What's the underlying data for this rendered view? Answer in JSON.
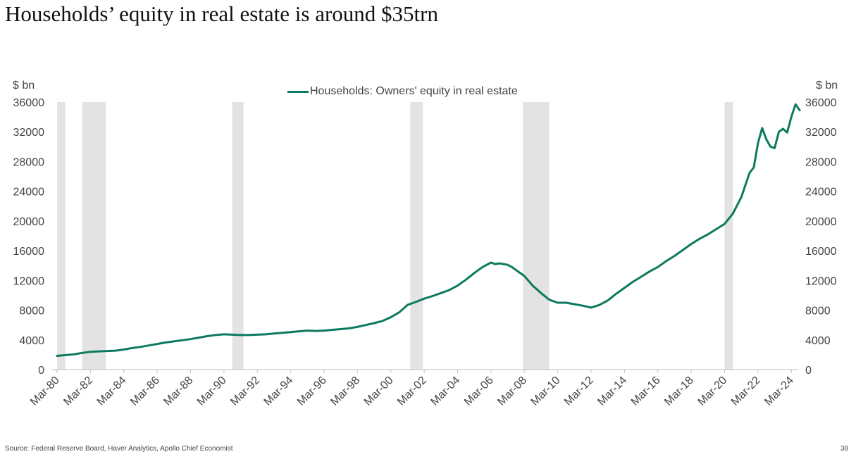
{
  "title": "Households’ equity in real estate is around $35trn",
  "footer": {
    "source": "Source: Federal Reserve Board, Haver Analytics, Apollo Chief Economist",
    "page_number": "38"
  },
  "colors": {
    "series_line": "#0c7a5e",
    "recession_band": "#e3e3e3",
    "axis": "#bfbfbf",
    "text": "#444444"
  },
  "chart_data": {
    "type": "line",
    "title": "Households’ equity in real estate is around $35trn",
    "y_unit_left": "$ bn",
    "y_unit_right": "$ bn",
    "ylim": [
      0,
      36000
    ],
    "yticks": [
      "0",
      "4000",
      "8000",
      "12000",
      "16000",
      "20000",
      "24000",
      "28000",
      "32000",
      "36000"
    ],
    "xlim": [
      1980.0,
      2024.75
    ],
    "xticks": [
      "Mar-80",
      "Mar-82",
      "Mar-84",
      "Mar-86",
      "Mar-88",
      "Mar-90",
      "Mar-92",
      "Mar-94",
      "Mar-96",
      "Mar-98",
      "Mar-00",
      "Mar-02",
      "Mar-04",
      "Mar-06",
      "Mar-08",
      "Mar-10",
      "Mar-12",
      "Mar-14",
      "Mar-16",
      "Mar-18",
      "Mar-20",
      "Mar-22",
      "Mar-24"
    ],
    "legend": {
      "position": "top-center",
      "entries": [
        "Households: Owners' equity in real estate"
      ]
    },
    "grid": false,
    "recession_shading": [
      {
        "start": 1980.0,
        "end": 1980.5
      },
      {
        "start": 1981.5,
        "end": 1982.92
      },
      {
        "start": 1990.5,
        "end": 1991.17
      },
      {
        "start": 2001.17,
        "end": 2001.92
      },
      {
        "start": 2007.92,
        "end": 2009.5
      },
      {
        "start": 2020.0,
        "end": 2020.5
      }
    ],
    "series": [
      {
        "name": "Households: Owners' equity in real estate",
        "x": [
          1980.0,
          1980.5,
          1981.0,
          1981.5,
          1982.0,
          1982.5,
          1983.0,
          1983.5,
          1984.0,
          1984.5,
          1985.0,
          1985.5,
          1986.0,
          1986.5,
          1987.0,
          1987.5,
          1988.0,
          1988.5,
          1989.0,
          1989.5,
          1990.0,
          1990.5,
          1991.0,
          1991.5,
          1992.0,
          1992.5,
          1993.0,
          1993.5,
          1994.0,
          1994.5,
          1995.0,
          1995.5,
          1996.0,
          1996.5,
          1997.0,
          1997.5,
          1998.0,
          1998.5,
          1999.0,
          1999.5,
          2000.0,
          2000.5,
          2001.0,
          2001.5,
          2002.0,
          2002.5,
          2003.0,
          2003.5,
          2004.0,
          2004.5,
          2005.0,
          2005.5,
          2006.0,
          2006.25,
          2006.5,
          2007.0,
          2007.25,
          2007.5,
          2008.0,
          2008.5,
          2009.0,
          2009.5,
          2010.0,
          2010.5,
          2011.0,
          2011.5,
          2012.0,
          2012.5,
          2013.0,
          2013.5,
          2014.0,
          2014.5,
          2015.0,
          2015.5,
          2016.0,
          2016.5,
          2017.0,
          2017.5,
          2018.0,
          2018.5,
          2019.0,
          2019.5,
          2020.0,
          2020.5,
          2021.0,
          2021.5,
          2021.75,
          2022.0,
          2022.25,
          2022.5,
          2022.75,
          2023.0,
          2023.25,
          2023.5,
          2023.75,
          2024.0,
          2024.25,
          2024.5
        ],
        "values": [
          1850,
          1950,
          2050,
          2250,
          2400,
          2450,
          2500,
          2550,
          2700,
          2900,
          3050,
          3250,
          3450,
          3650,
          3800,
          3950,
          4100,
          4300,
          4500,
          4650,
          4750,
          4700,
          4650,
          4650,
          4700,
          4750,
          4850,
          4950,
          5050,
          5150,
          5250,
          5200,
          5250,
          5350,
          5450,
          5550,
          5750,
          6000,
          6250,
          6550,
          7050,
          7700,
          8700,
          9100,
          9550,
          9900,
          10300,
          10700,
          11300,
          12100,
          13000,
          13800,
          14400,
          14200,
          14300,
          14100,
          13800,
          13400,
          12600,
          11300,
          10300,
          9400,
          9000,
          9000,
          8800,
          8600,
          8350,
          8700,
          9300,
          10200,
          11000,
          11800,
          12500,
          13200,
          13800,
          14600,
          15300,
          16100,
          16900,
          17600,
          18200,
          18900,
          19600,
          21000,
          23200,
          26500,
          27200,
          30500,
          32500,
          31000,
          30000,
          29800,
          32000,
          32400,
          31900,
          34000,
          35700,
          34900
        ]
      }
    ]
  }
}
